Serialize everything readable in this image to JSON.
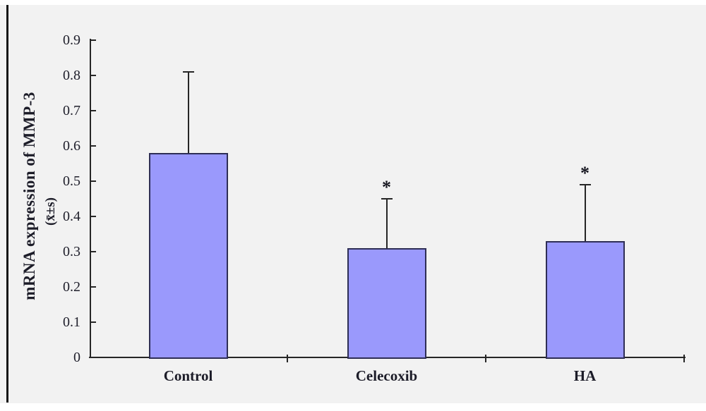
{
  "figure": {
    "background_color": "#f2f2f2",
    "bar_fill_color": "#9a99fc",
    "bar_border_color": "#2e2e55",
    "axis_color": "#262626",
    "text_color": "#1c1c28"
  },
  "chart_data": {
    "type": "bar",
    "title": "",
    "categories": [
      "Control",
      "Celecoxib",
      "HA"
    ],
    "values": [
      0.58,
      0.31,
      0.33
    ],
    "errors_plus": [
      0.23,
      0.14,
      0.16
    ],
    "significance": [
      "",
      "*",
      "*"
    ],
    "ylabel": "mRNA expression of MMP-3",
    "ylabel_sub": "(x̄±s)",
    "ylim": [
      0,
      0.9
    ],
    "ytick_step": 0.1,
    "ytick_labels": [
      "0",
      "0.1",
      "0.2",
      "0.3",
      "0.4",
      "0.5",
      "0.6",
      "0.7",
      "0.8",
      "0.9"
    ],
    "grid": false,
    "legend": null,
    "error_bar_direction": "upper-only"
  }
}
